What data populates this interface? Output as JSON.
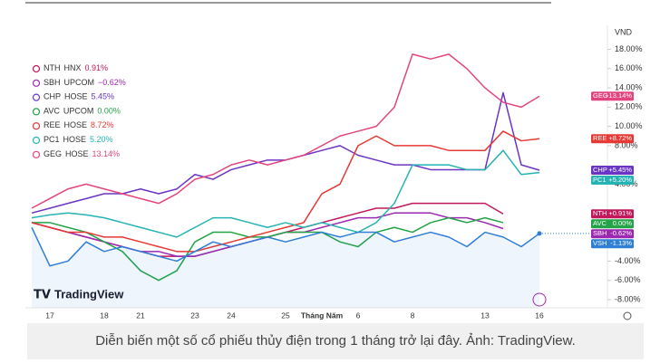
{
  "chart_data": {
    "type": "line",
    "currency": "VND",
    "watermark": "TradingView",
    "categories": [
      null,
      "17",
      null,
      null,
      "18",
      null,
      "21",
      null,
      null,
      "23",
      null,
      "24",
      null,
      null,
      "25",
      null,
      "Tháng Năm",
      null,
      "6",
      null,
      null,
      "8",
      null,
      null,
      null,
      "13",
      null,
      null,
      "16"
    ],
    "ylim": [
      -8.85,
      20.5
    ],
    "yticks": [
      {
        "value": -8,
        "label": "-8.00%"
      },
      {
        "value": -6,
        "label": "-6.00%"
      },
      {
        "value": -4,
        "label": "-4.00%"
      },
      {
        "value": 4,
        "label": "4.00%"
      },
      {
        "value": 8,
        "label": "8.00%"
      },
      {
        "value": 10,
        "label": "10.00%"
      },
      {
        "value": 12,
        "label": "12.00%"
      },
      {
        "value": 14,
        "label": "14.00%"
      },
      {
        "value": 16,
        "label": "16.00%"
      },
      {
        "value": 18,
        "label": "18.00%"
      }
    ],
    "grid": false,
    "series": [
      {
        "name": "NTH",
        "exchange": "HNX",
        "change_label": "0.91%",
        "tag": "+0.91%",
        "color": "#c2185b",
        "values": [
          0,
          -0.5,
          -1,
          -1.5,
          -2,
          -2.5,
          -3,
          -3.5,
          -3.5,
          -3.5,
          -3,
          -2.5,
          -2,
          -1.5,
          -1,
          -0.5,
          0,
          0.5,
          1,
          1.5,
          1.5,
          2,
          2,
          2,
          2,
          2,
          0.91,
          null,
          null
        ]
      },
      {
        "name": "SBH",
        "exchange": "UPCOM",
        "change_label": "−0.62%",
        "tag": "-0.62%",
        "color": "#9c27b0",
        "values": [
          0,
          -0.5,
          -1,
          -1.5,
          -2,
          -2.5,
          -3,
          -3,
          -3.5,
          -3.5,
          -3,
          -2.5,
          -2,
          -1.5,
          -1,
          -1,
          -0.5,
          0,
          0.5,
          0.5,
          1,
          1,
          1,
          0.5,
          0.5,
          0,
          -0.62,
          null,
          null
        ]
      },
      {
        "name": "CHP",
        "exchange": "HOSE",
        "change_label": "5.45%",
        "tag": "+5.45%",
        "color": "#6a35c4",
        "values": [
          1,
          1.5,
          2,
          2.5,
          3,
          3,
          3.5,
          3,
          3.5,
          5,
          4.5,
          5.5,
          6,
          6.5,
          6.5,
          7,
          7.5,
          8,
          7,
          6.5,
          6,
          6,
          5.5,
          5.5,
          5.5,
          5.5,
          13.5,
          6,
          5.45
        ]
      },
      {
        "name": "AVC",
        "exchange": "UPCOM",
        "change_label": "0.00%",
        "tag": "0.00%",
        "color": "#22a447",
        "values": [
          0,
          0,
          -0.5,
          -1,
          -2,
          -3,
          -5,
          -6,
          -5,
          -2,
          -1,
          -1,
          -1.5,
          -1.5,
          -1,
          -1,
          -1,
          -2,
          -2.5,
          -1,
          -0.5,
          -1,
          0,
          0.5,
          0,
          0.5,
          0,
          null,
          null
        ]
      },
      {
        "name": "REE",
        "exchange": "HOSE",
        "change_label": "8.72%",
        "tag": "+8.72%",
        "color": "#e53935",
        "values": [
          0,
          -0.5,
          -1,
          -1,
          -1.5,
          -1.5,
          -2,
          -2.5,
          -3,
          -3,
          -2.5,
          -2,
          -1.5,
          -1,
          -0.5,
          0,
          3,
          4,
          8,
          9,
          8,
          8,
          8,
          7.5,
          7.5,
          7.5,
          9.5,
          8.5,
          8.72
        ]
      },
      {
        "name": "PC1",
        "exchange": "HOSE",
        "change_label": "5.20%",
        "tag": "+5.20%",
        "color": "#26b3b3",
        "values": [
          0.5,
          0.8,
          1,
          0.8,
          0.5,
          0,
          -0.5,
          -1,
          -1.5,
          -0.5,
          0.5,
          0.5,
          0,
          -0.5,
          0,
          -0.5,
          0,
          -0.5,
          -1,
          0,
          2,
          6,
          6,
          6,
          5.5,
          5.5,
          7.5,
          5,
          5.2
        ]
      },
      {
        "name": "GEG",
        "exchange": "HOSE",
        "change_label": "13.14%",
        "tag": "+13.14%",
        "color": "#e2457e",
        "values": [
          1.5,
          2.5,
          3.5,
          4,
          3.5,
          3,
          2.5,
          2,
          3,
          4.5,
          5,
          6,
          6.5,
          6,
          6.5,
          7,
          8,
          9,
          9.5,
          10,
          12,
          17.5,
          17,
          17.5,
          16,
          14,
          12.5,
          12,
          13.14
        ]
      },
      {
        "name": "VSH",
        "tag": "-1.13%",
        "color": "#2f7fd6",
        "fill": true,
        "values": [
          -0.5,
          -4.5,
          -4,
          -2,
          -3,
          -2.5,
          -3,
          -3.5,
          -4,
          -3,
          -2,
          -2.5,
          -2,
          -1.5,
          -2,
          -1.5,
          -1,
          -1.5,
          -1,
          -1,
          -2,
          -1.5,
          -1,
          -1.5,
          -2.5,
          -1,
          -1.5,
          -2.5,
          -1.13
        ]
      }
    ]
  },
  "caption": "Diễn biến một số cổ phiếu thủy điện trong 1 tháng trở lại đây. Ảnh: TradingView."
}
